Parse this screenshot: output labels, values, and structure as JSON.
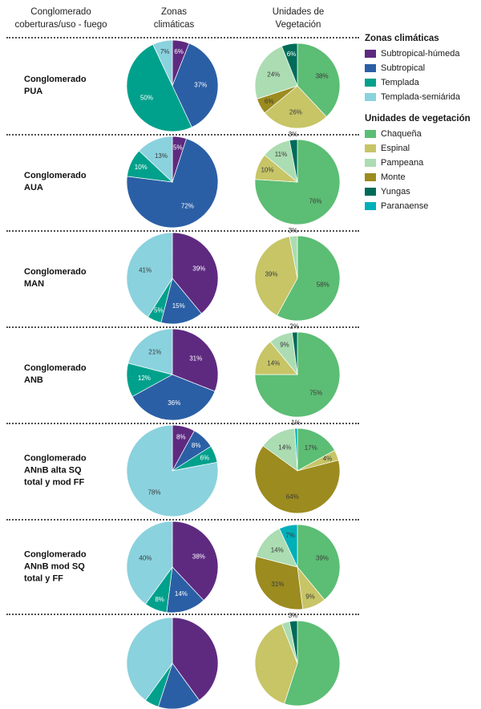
{
  "headers": {
    "col1": "Conglomerado\ncoberturas/uso - fuego",
    "col2": "Zonas\nclimáticas",
    "col3": "Unidades de\nVegetación"
  },
  "legend": {
    "zonas_title": "Zonas climáticas",
    "zonas": [
      {
        "label": "Subtropical-húmeda"
      },
      {
        "label": "Subtropical"
      },
      {
        "label": "Templada"
      },
      {
        "label": "Templada-semiárida"
      }
    ],
    "veg_title": "Unidades de vegetación",
    "veg": [
      {
        "label": "Chaqueña"
      },
      {
        "label": "Espinal"
      },
      {
        "label": "Pampeana"
      },
      {
        "label": "Monte"
      },
      {
        "label": "Yungas"
      },
      {
        "label": "Paranaense"
      }
    ]
  },
  "colors": {
    "Subtropical-húmeda": "#5e2a80",
    "Subtropical": "#2b5fa5",
    "Templada": "#00a18c",
    "Templada-semiárida": "#8ad2de",
    "Chaqueña": "#5cbd74",
    "Espinal": "#c7c566",
    "Pampeana": "#abdcb2",
    "Monte": "#9c8b1f",
    "Yungas": "#006b58",
    "Paranaense": "#00afb8"
  },
  "label_style": {
    "white_on": [
      "Subtropical-húmeda",
      "Subtropical",
      "Templada",
      "Yungas"
    ],
    "dark": "#3b3b3b",
    "outside": "#222222"
  },
  "chart_data": [
    {
      "row_label": "Conglomerado\nPUA",
      "zonas": {
        "type": "pie",
        "slices": [
          {
            "name": "Subtropical-húmeda",
            "value": 6,
            "label": "6%"
          },
          {
            "name": "Subtropical",
            "value": 37,
            "label": "37%"
          },
          {
            "name": "Templada",
            "value": 50,
            "label": "50%"
          },
          {
            "name": "Templada-semiárida",
            "value": 7,
            "label": "7%"
          }
        ]
      },
      "vegetacion": {
        "type": "pie",
        "slices": [
          {
            "name": "Chaqueña",
            "value": 38,
            "label": "38%"
          },
          {
            "name": "Espinal",
            "value": 26,
            "label": "26%"
          },
          {
            "name": "Monte",
            "value": 6,
            "label": "6%"
          },
          {
            "name": "Pampeana",
            "value": 24,
            "label": "24%"
          },
          {
            "name": "Yungas",
            "value": 6,
            "label": "6%"
          }
        ]
      }
    },
    {
      "row_label": "Conglomerado\nAUA",
      "zonas": {
        "type": "pie",
        "slices": [
          {
            "name": "Subtropical-húmeda",
            "value": 5,
            "label": "5%"
          },
          {
            "name": "Subtropical",
            "value": 72,
            "label": "72%"
          },
          {
            "name": "Templada",
            "value": 10,
            "label": "10%"
          },
          {
            "name": "Templada-semiárida",
            "value": 13,
            "label": "13%"
          }
        ]
      },
      "vegetacion": {
        "type": "pie",
        "slices": [
          {
            "name": "Chaqueña",
            "value": 76,
            "label": "76%"
          },
          {
            "name": "Espinal",
            "value": 10,
            "label": "10%"
          },
          {
            "name": "Pampeana",
            "value": 11,
            "label": "11%"
          },
          {
            "name": "Yungas",
            "value": 3,
            "label": "3%",
            "out": true
          }
        ]
      }
    },
    {
      "row_label": "Conglomerado\nMAN",
      "zonas": {
        "type": "pie",
        "slices": [
          {
            "name": "Subtropical-húmeda",
            "value": 39,
            "label": "39%"
          },
          {
            "name": "Subtropical",
            "value": 15,
            "label": "15%"
          },
          {
            "name": "Templada",
            "value": 5,
            "label": "5%"
          },
          {
            "name": "Templada-semiárida",
            "value": 41,
            "label": "41%"
          }
        ]
      },
      "vegetacion": {
        "type": "pie",
        "slices": [
          {
            "name": "Chaqueña",
            "value": 58,
            "label": "58%"
          },
          {
            "name": "Espinal",
            "value": 39,
            "label": "39%"
          },
          {
            "name": "Pampeana",
            "value": 3,
            "label": "3%",
            "out": true
          }
        ]
      }
    },
    {
      "row_label": "Conglomerado\nANB",
      "zonas": {
        "type": "pie",
        "slices": [
          {
            "name": "Subtropical-húmeda",
            "value": 31,
            "label": "31%"
          },
          {
            "name": "Subtropical",
            "value": 36,
            "label": "36%"
          },
          {
            "name": "Templada",
            "value": 12,
            "label": "12%"
          },
          {
            "name": "Templada-semiárida",
            "value": 21,
            "label": "21%"
          }
        ]
      },
      "vegetacion": {
        "type": "pie",
        "slices": [
          {
            "name": "Chaqueña",
            "value": 75,
            "label": "75%"
          },
          {
            "name": "Espinal",
            "value": 14,
            "label": "14%"
          },
          {
            "name": "Pampeana",
            "value": 9,
            "label": "9%"
          },
          {
            "name": "Yungas",
            "value": 2,
            "label": "2%",
            "out": true
          }
        ]
      }
    },
    {
      "row_label": "Conglomerado\nANnB alta SQ\ntotal y mod FF",
      "zonas": {
        "type": "pie",
        "slices": [
          {
            "name": "Subtropical-húmeda",
            "value": 8,
            "label": "8%"
          },
          {
            "name": "Subtropical",
            "value": 8,
            "label": "8%"
          },
          {
            "name": "Templada",
            "value": 6,
            "label": "6%"
          },
          {
            "name": "Templada-semiárida",
            "value": 78,
            "label": "78%"
          }
        ]
      },
      "vegetacion": {
        "type": "pie",
        "slices": [
          {
            "name": "Chaqueña",
            "value": 17,
            "label": "17%"
          },
          {
            "name": "Espinal",
            "value": 4,
            "label": "4%"
          },
          {
            "name": "Monte",
            "value": 64,
            "label": "64%"
          },
          {
            "name": "Pampeana",
            "value": 14,
            "label": "14%"
          },
          {
            "name": "Paranaense",
            "value": 1,
            "label": "1%",
            "out": true
          }
        ]
      }
    },
    {
      "row_label": "Conglomerado\nANnB mod SQ\ntotal y FF",
      "zonas": {
        "type": "pie",
        "slices": [
          {
            "name": "Subtropical-húmeda",
            "value": 38,
            "label": "38%"
          },
          {
            "name": "Subtropical",
            "value": 14,
            "label": "14%"
          },
          {
            "name": "Templada",
            "value": 8,
            "label": "8%"
          },
          {
            "name": "Templada-semiárida",
            "value": 40,
            "label": "40%"
          }
        ]
      },
      "vegetacion": {
        "type": "pie",
        "slices": [
          {
            "name": "Chaqueña",
            "value": 39,
            "label": "39%"
          },
          {
            "name": "Espinal",
            "value": 9,
            "label": "9%"
          },
          {
            "name": "Monte",
            "value": 31,
            "label": "31%"
          },
          {
            "name": "Pampeana",
            "value": 14,
            "label": "14%"
          },
          {
            "name": "Paranaense",
            "value": 7,
            "label": "7%"
          }
        ]
      }
    },
    {
      "row_label": "",
      "cut_off": true,
      "zonas": {
        "type": "pie",
        "slices": [
          {
            "name": "Subtropical-húmeda",
            "value": 40,
            "label": ""
          },
          {
            "name": "Subtropical",
            "value": 15,
            "label": ""
          },
          {
            "name": "Templada",
            "value": 5,
            "label": ""
          },
          {
            "name": "Templada-semiárida",
            "value": 40,
            "label": ""
          }
        ]
      },
      "vegetacion": {
        "type": "pie",
        "slices": [
          {
            "name": "Chaqueña",
            "value": 55,
            "label": ""
          },
          {
            "name": "Espinal",
            "value": 39,
            "label": ""
          },
          {
            "name": "Pampeana",
            "value": 3,
            "label": ""
          },
          {
            "name": "Yungas",
            "value": 3,
            "label": "3%",
            "out": true
          }
        ]
      }
    }
  ]
}
